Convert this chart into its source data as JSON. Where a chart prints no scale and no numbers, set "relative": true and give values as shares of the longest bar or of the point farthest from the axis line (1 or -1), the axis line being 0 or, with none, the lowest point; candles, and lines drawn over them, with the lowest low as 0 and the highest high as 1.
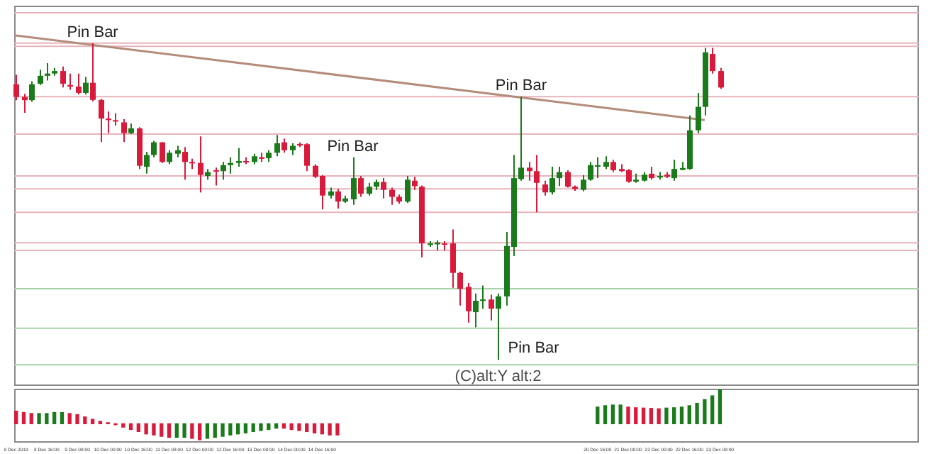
{
  "chart_data": [
    {
      "type": "candlestick",
      "relative": true,
      "tick_labels": false,
      "xlim": [
        "2019-12-07T23:00",
        "2019-12-27T16:00"
      ],
      "x": [
        "2019-12-08T00:00",
        "2019-12-08T04:00",
        "2019-12-08T08:00",
        "2019-12-08T12:00",
        "2019-12-08T16:00",
        "2019-12-08T20:00",
        "2019-12-09T00:00",
        "2019-12-09T04:00",
        "2019-12-09T08:00",
        "2019-12-09T12:00",
        "2019-12-09T16:00",
        "2019-12-09T20:00",
        "2019-12-10T00:00",
        "2019-12-10T04:00",
        "2019-12-10T08:00",
        "2019-12-10T12:00",
        "2019-12-10T16:00",
        "2019-12-10T20:00",
        "2019-12-11T00:00",
        "2019-12-11T04:00",
        "2019-12-11T08:00",
        "2019-12-11T12:00",
        "2019-12-11T16:00",
        "2019-12-11T20:00",
        "2019-12-12T00:00",
        "2019-12-12T04:00",
        "2019-12-12T08:00",
        "2019-12-12T12:00",
        "2019-12-12T16:00",
        "2019-12-12T20:00",
        "2019-12-13T00:00",
        "2019-12-13T04:00",
        "2019-12-13T08:00",
        "2019-12-13T12:00",
        "2019-12-13T16:00",
        "2019-12-13T20:00",
        "2019-12-14T00:00",
        "2019-12-14T04:00",
        "2019-12-14T08:00",
        "2019-12-14T12:00",
        "2019-12-14T16:00",
        "2019-12-14T20:00",
        "2019-12-15T00:00",
        "2019-12-15T04:00",
        "2019-12-15T08:00",
        "2019-12-15T12:00",
        "2019-12-15T16:00",
        "2019-12-15T20:00",
        "2019-12-16T00:00",
        "2019-12-16T04:00",
        "2019-12-16T08:00",
        "2019-12-16T12:00",
        "2019-12-16T16:00",
        "2019-12-16T20:00",
        "2019-12-17T00:00",
        "2019-12-17T04:00",
        "2019-12-17T08:00",
        "2019-12-17T12:00",
        "2019-12-17T16:00",
        "2019-12-17T20:00",
        "2019-12-18T00:00",
        "2019-12-18T04:00",
        "2019-12-18T08:00",
        "2019-12-18T12:00",
        "2019-12-18T16:00",
        "2019-12-18T20:00",
        "2019-12-19T00:00",
        "2019-12-19T04:00",
        "2019-12-19T08:00",
        "2019-12-19T12:00",
        "2019-12-19T16:00",
        "2019-12-19T20:00",
        "2019-12-20T00:00",
        "2019-12-20T04:00",
        "2019-12-20T08:00",
        "2019-12-20T12:00",
        "2019-12-20T16:00",
        "2019-12-20T20:00",
        "2019-12-21T00:00",
        "2019-12-21T04:00",
        "2019-12-21T08:00",
        "2019-12-21T12:00",
        "2019-12-21T16:00",
        "2019-12-21T20:00",
        "2019-12-22T00:00",
        "2019-12-22T04:00",
        "2019-12-22T08:00",
        "2019-12-22T12:00",
        "2019-12-22T16:00",
        "2019-12-22T20:00",
        "2019-12-23T00:00",
        "2019-12-23T04:00",
        "2019-12-23T08:00"
      ],
      "ohlc": [
        [
          0.87,
          0.9,
          0.82,
          0.83
        ],
        [
          0.83,
          0.84,
          0.78,
          0.82
        ],
        [
          0.82,
          0.88,
          0.815,
          0.87
        ],
        [
          0.872,
          0.916,
          0.868,
          0.897
        ],
        [
          0.897,
          0.937,
          0.882,
          0.904
        ],
        [
          0.904,
          0.922,
          0.897,
          0.912
        ],
        [
          0.912,
          0.926,
          0.86,
          0.872
        ],
        [
          0.868,
          0.904,
          0.853,
          0.863
        ],
        [
          0.863,
          0.904,
          0.838,
          0.843
        ],
        [
          0.843,
          0.893,
          0.838,
          0.875
        ],
        [
          0.875,
          1,
          0.816,
          0.821
        ],
        [
          0.821,
          0.824,
          0.688,
          0.762
        ],
        [
          0.762,
          0.784,
          0.716,
          0.757
        ],
        [
          0.757,
          0.779,
          0.74,
          0.753
        ],
        [
          0.75,
          0.76,
          0.688,
          0.716
        ],
        [
          0.716,
          0.746,
          0.713,
          0.731
        ],
        [
          0.731,
          0.735,
          0.603,
          0.613
        ],
        [
          0.61,
          0.657,
          0.588,
          0.647
        ],
        [
          0.647,
          0.691,
          0.64,
          0.687
        ],
        [
          0.687,
          0.688,
          0.622,
          0.625
        ],
        [
          0.625,
          0.662,
          0.618,
          0.654
        ],
        [
          0.651,
          0.676,
          0.64,
          0.662
        ],
        [
          0.657,
          0.672,
          0.569,
          0.625
        ],
        [
          0.625,
          0.635,
          0.603,
          0.621
        ],
        [
          0.622,
          0.706,
          0.529,
          0.584
        ],
        [
          0.581,
          0.603,
          0.569,
          0.593
        ],
        [
          0.599,
          0.607,
          0.551,
          0.596
        ],
        [
          0.596,
          0.625,
          0.569,
          0.615
        ],
        [
          0.615,
          0.64,
          0.588,
          0.622
        ],
        [
          0.622,
          0.669,
          0.61,
          0.628
        ],
        [
          0.628,
          0.64,
          0.618,
          0.625
        ],
        [
          0.625,
          0.651,
          0.618,
          0.643
        ],
        [
          0.64,
          0.654,
          0.625,
          0.635
        ],
        [
          0.637,
          0.662,
          0.625,
          0.654
        ],
        [
          0.654,
          0.71,
          0.643,
          0.684
        ],
        [
          0.687,
          0.699,
          0.654,
          0.662
        ],
        [
          0.662,
          0.684,
          0.647,
          0.676
        ],
        [
          0.682,
          0.687,
          0.672,
          0.677
        ],
        [
          0.681,
          0.684,
          0.596,
          0.613
        ],
        [
          0.613,
          0.618,
          0.574,
          0.578
        ],
        [
          0.581,
          0.584,
          0.475,
          0.519
        ],
        [
          0.519,
          0.544,
          0.51,
          0.532
        ],
        [
          0.532,
          0.54,
          0.478,
          0.5
        ],
        [
          0.5,
          0.519,
          0.496,
          0.51
        ],
        [
          0.507,
          0.64,
          0.49,
          0.574
        ],
        [
          0.574,
          0.581,
          0.515,
          0.525
        ],
        [
          0.525,
          0.559,
          0.519,
          0.547
        ],
        [
          0.547,
          0.569,
          0.537,
          0.562
        ],
        [
          0.562,
          0.574,
          0.51,
          0.537
        ],
        [
          0.537,
          0.544,
          0.49,
          0.515
        ],
        [
          0.515,
          0.522,
          0.493,
          0.5
        ],
        [
          0.5,
          0.581,
          0.496,
          0.569
        ],
        [
          0.566,
          0.578,
          0.537,
          0.549
        ],
        [
          0.547,
          0.551,
          0.324,
          0.368
        ],
        [
          0.363,
          0.375,
          0.357,
          0.368
        ],
        [
          0.365,
          0.378,
          0.346,
          0.371
        ],
        [
          0.368,
          0.375,
          0.346,
          0.365
        ],
        [
          0.368,
          0.412,
          0.228,
          0.275
        ],
        [
          0.275,
          0.279,
          0.172,
          0.225
        ],
        [
          0.231,
          0.243,
          0.118,
          0.154
        ],
        [
          0.151,
          0.21,
          0.103,
          0.187
        ],
        [
          0.188,
          0.235,
          0.162,
          0.191
        ],
        [
          0.191,
          0.206,
          0.125,
          0.162
        ],
        [
          0.162,
          0.21,
          0,
          0.201
        ],
        [
          0.201,
          0.404,
          0.172,
          0.36
        ],
        [
          0.357,
          0.647,
          0.328,
          0.574
        ],
        [
          0.571,
          0.831,
          0.566,
          0.607
        ],
        [
          0.607,
          0.625,
          0.566,
          0.596
        ],
        [
          0.596,
          0.647,
          0.466,
          0.559
        ],
        [
          0.554,
          0.566,
          0.519,
          0.529
        ],
        [
          0.529,
          0.61,
          0.522,
          0.574
        ],
        [
          0.574,
          0.61,
          0.549,
          0.593
        ],
        [
          0.593,
          0.599,
          0.544,
          0.547
        ],
        [
          0.547,
          0.551,
          0.534,
          0.54
        ],
        [
          0.537,
          0.584,
          0.532,
          0.569
        ],
        [
          0.569,
          0.625,
          0.566,
          0.615
        ],
        [
          0.61,
          0.64,
          0.574,
          0.615
        ],
        [
          0.61,
          0.643,
          0.603,
          0.625
        ],
        [
          0.625,
          0.632,
          0.593,
          0.599
        ],
        [
          0.603,
          0.618,
          0.593,
          0.596
        ],
        [
          0.599,
          0.603,
          0.559,
          0.563
        ],
        [
          0.563,
          0.588,
          0.559,
          0.569
        ],
        [
          0.566,
          0.593,
          0.563,
          0.585
        ],
        [
          0.588,
          0.61,
          0.569,
          0.574
        ],
        [
          0.576,
          0.593,
          0.569,
          0.581
        ],
        [
          0.585,
          0.593,
          0.574,
          0.578
        ],
        [
          0.574,
          0.632,
          0.566,
          0.603
        ],
        [
          0.6,
          0.625,
          0.599,
          0.606
        ],
        [
          0.603,
          0.772,
          0.6,
          0.725
        ],
        [
          0.725,
          0.843,
          0.716,
          0.799
        ],
        [
          0.799,
          0.985,
          0.772,
          0.971
        ],
        [
          0.966,
          0.985,
          0.904,
          0.912
        ],
        [
          0.912,
          0.922,
          0.856,
          0.86
        ]
      ],
      "colors": [
        "#d81b3c",
        "#d81b3c",
        "#1b7a1b",
        "#1b7a1b",
        "#1b7a1b",
        "#1b7a1b",
        "#d81b3c",
        "#d81b3c",
        "#d81b3c",
        "#1b7a1b",
        "#d81b3c",
        "#d81b3c",
        "#d81b3c",
        "#d81b3c",
        "#d81b3c",
        "#1b7a1b",
        "#d81b3c",
        "#1b7a1b",
        "#1b7a1b",
        "#d81b3c",
        "#1b7a1b",
        "#1b7a1b",
        "#d81b3c",
        "#d81b3c",
        "#d81b3c",
        "#1b7a1b",
        "#d81b3c",
        "#1b7a1b",
        "#1b7a1b",
        "#1b7a1b",
        "#d81b3c",
        "#1b7a1b",
        "#d81b3c",
        "#1b7a1b",
        "#1b7a1b",
        "#d81b3c",
        "#1b7a1b",
        "#d81b3c",
        "#d81b3c",
        "#d81b3c",
        "#d81b3c",
        "#1b7a1b",
        "#d81b3c",
        "#1b7a1b",
        "#1b7a1b",
        "#d81b3c",
        "#1b7a1b",
        "#1b7a1b",
        "#d81b3c",
        "#d81b3c",
        "#d81b3c",
        "#1b7a1b",
        "#d81b3c",
        "#d81b3c",
        "#1b7a1b",
        "#1b7a1b",
        "#d81b3c",
        "#d81b3c",
        "#d81b3c",
        "#d81b3c",
        "#1b7a1b",
        "#1b7a1b",
        "#d81b3c",
        "#1b7a1b",
        "#1b7a1b",
        "#1b7a1b",
        "#1b7a1b",
        "#d81b3c",
        "#d81b3c",
        "#d81b3c",
        "#1b7a1b",
        "#1b7a1b",
        "#d81b3c",
        "#d81b3c",
        "#1b7a1b",
        "#1b7a1b",
        "#1b7a1b",
        "#1b7a1b",
        "#d81b3c",
        "#d81b3c",
        "#d81b3c",
        "#1b7a1b",
        "#1b7a1b",
        "#d81b3c",
        "#1b7a1b",
        "#d81b3c",
        "#1b7a1b",
        "#1b7a1b",
        "#1b7a1b",
        "#1b7a1b",
        "#1b7a1b",
        "#d81b3c",
        "#d81b3c"
      ],
      "series": [
        {
          "type": "line",
          "color": "#b48c7c",
          "x": [
            "2019-12-07T23:00",
            "2019-12-23T00:00"
          ],
          "values": [
            1.025,
            0.757
          ]
        }
      ],
      "ref_lines": [
        {
          "axis": "y",
          "value": 1.096,
          "color": "#e6b3bb"
        },
        {
          "axis": "y",
          "value": 1.0,
          "color": "#e6b3bb"
        },
        {
          "axis": "y",
          "value": 0.99,
          "color": "#e6b3bb"
        },
        {
          "axis": "y",
          "value": 0.831,
          "color": "#e6b3bb"
        },
        {
          "axis": "y",
          "value": 0.713,
          "color": "#e6b3bb"
        },
        {
          "axis": "y",
          "value": 0.581,
          "color": "#e6b3bb"
        },
        {
          "axis": "y",
          "value": 0.54,
          "color": "#e6b3bb"
        },
        {
          "axis": "y",
          "value": 0.466,
          "color": "#e6b3bb"
        },
        {
          "axis": "y",
          "value": 0.37,
          "color": "#e6b3bb"
        },
        {
          "axis": "y",
          "value": 0.346,
          "color": "#e6b3bb"
        },
        {
          "axis": "y",
          "value": 0.225,
          "color": "#a9d1a9"
        },
        {
          "axis": "y",
          "value": 0.1,
          "color": "#a9d1a9"
        },
        {
          "axis": "y",
          "value": -0.015,
          "color": "#a9d1a9"
        }
      ],
      "annotations": [
        {
          "text": "Pin Bar",
          "x": "2019-12-09T16:00",
          "y": 1
        },
        {
          "text": "Pin Bar",
          "x": "2019-12-15T08:00",
          "y": 0.64
        },
        {
          "text": "Pin Bar",
          "x": "2019-12-19T00:00",
          "y": 0.831
        },
        {
          "text": "Pin Bar",
          "x": "2019-12-18T12:00",
          "y": 0
        },
        "(C)alt:Y alt:2"
      ]
    },
    {
      "type": "bar",
      "relative": true,
      "tick_labels": "x",
      "xlim": [
        "2019-12-07T23:00",
        "2019-12-27T16:00"
      ],
      "x": [
        "2019-12-08T00:00",
        "2019-12-08T04:00",
        "2019-12-08T08:00",
        "2019-12-08T12:00",
        "2019-12-08T16:00",
        "2019-12-08T20:00",
        "2019-12-09T00:00",
        "2019-12-09T04:00",
        "2019-12-09T08:00",
        "2019-12-09T12:00",
        "2019-12-09T16:00",
        "2019-12-09T20:00",
        "2019-12-10T00:00",
        "2019-12-10T04:00",
        "2019-12-10T08:00",
        "2019-12-10T12:00",
        "2019-12-10T16:00",
        "2019-12-10T20:00",
        "2019-12-11T00:00",
        "2019-12-11T04:00",
        "2019-12-11T08:00",
        "2019-12-11T12:00",
        "2019-12-11T16:00",
        "2019-12-11T20:00",
        "2019-12-12T00:00",
        "2019-12-12T04:00",
        "2019-12-12T08:00",
        "2019-12-12T12:00",
        "2019-12-12T16:00",
        "2019-12-12T20:00",
        "2019-12-13T00:00",
        "2019-12-13T04:00",
        "2019-12-13T08:00",
        "2019-12-13T12:00",
        "2019-12-13T16:00",
        "2019-12-13T20:00",
        "2019-12-14T00:00",
        "2019-12-14T04:00",
        "2019-12-14T08:00",
        "2019-12-14T12:00",
        "2019-12-14T16:00",
        "2019-12-14T20:00",
        "2019-12-15T00:00",
        "2019-12-15T04:00",
        "2019-12-15T08:00",
        "2019-12-15T12:00",
        "2019-12-15T16:00",
        "2019-12-15T20:00",
        "2019-12-16T00:00",
        "2019-12-16T04:00",
        "2019-12-16T08:00",
        "2019-12-16T12:00",
        "2019-12-16T16:00",
        "2019-12-16T20:00",
        "2019-12-17T00:00",
        "2019-12-17T04:00",
        "2019-12-17T08:00",
        "2019-12-17T12:00",
        "2019-12-17T16:00",
        "2019-12-17T20:00",
        "2019-12-18T00:00",
        "2019-12-18T04:00",
        "2019-12-18T08:00",
        "2019-12-18T12:00",
        "2019-12-18T16:00",
        "2019-12-18T20:00",
        "2019-12-19T00:00",
        "2019-12-19T04:00",
        "2019-12-19T08:00",
        "2019-12-19T12:00",
        "2019-12-19T16:00",
        "2019-12-19T20:00",
        "2019-12-20T00:00",
        "2019-12-20T04:00",
        "2019-12-20T08:00",
        "2019-12-20T12:00",
        "2019-12-20T16:00",
        "2019-12-20T20:00",
        "2019-12-21T00:00",
        "2019-12-21T04:00",
        "2019-12-21T08:00",
        "2019-12-21T12:00",
        "2019-12-21T16:00",
        "2019-12-21T20:00",
        "2019-12-22T00:00",
        "2019-12-22T04:00",
        "2019-12-22T08:00",
        "2019-12-22T12:00",
        "2019-12-22T16:00",
        "2019-12-22T20:00",
        "2019-12-23T00:00",
        "2019-12-23T04:00",
        "2019-12-23T08:00"
      ],
      "values": [
        0.37,
        0.33,
        0.3,
        0.3,
        0.3,
        0.33,
        0.33,
        0.3,
        0.27,
        0.2,
        0.13,
        0.07,
        0.03,
        -0.03,
        -0.1,
        -0.17,
        -0.23,
        -0.3,
        -0.33,
        -0.37,
        -0.4,
        -0.4,
        -0.4,
        -0.43,
        -0.47,
        -0.43,
        -0.4,
        -0.37,
        -0.33,
        -0.3,
        -0.27,
        -0.23,
        -0.2,
        -0.17,
        -0.13,
        -0.13,
        -0.17,
        -0.2,
        -0.23,
        -0.27,
        -0.3,
        -0.33,
        -0.33,
        null,
        null,
        null,
        null,
        null,
        null,
        null,
        null,
        null,
        null,
        null,
        null,
        null,
        null,
        null,
        null,
        null,
        null,
        null,
        null,
        null,
        null,
        null,
        null,
        null,
        null,
        null,
        null,
        null,
        null,
        null,
        null,
        null,
        0.49,
        0.53,
        0.55,
        0.55,
        0.49,
        0.47,
        0.46,
        0.45,
        0.44,
        0.46,
        0.47,
        0.49,
        0.53,
        0.6,
        0.71,
        0.82,
        1
      ],
      "colors": [
        "#d81b3c",
        "#d81b3c",
        "#d81b3c",
        "#1b7a1b",
        "#1b7a1b",
        "#1b7a1b",
        "#1b7a1b",
        "#d81b3c",
        "#d81b3c",
        "#d81b3c",
        "#d81b3c",
        "#d81b3c",
        "#d81b3c",
        "#d81b3c",
        "#d81b3c",
        "#d81b3c",
        "#d81b3c",
        "#d81b3c",
        "#d81b3c",
        "#d81b3c",
        "#d81b3c",
        "#1b7a1b",
        "#1b7a1b",
        "#d81b3c",
        "#d81b3c",
        "#1b7a1b",
        "#1b7a1b",
        "#1b7a1b",
        "#1b7a1b",
        "#1b7a1b",
        "#1b7a1b",
        "#1b7a1b",
        "#1b7a1b",
        "#1b7a1b",
        "#1b7a1b",
        "#d81b3c",
        "#d81b3c",
        "#d81b3c",
        "#d81b3c",
        "#d81b3c",
        "#d81b3c",
        "#d81b3c",
        "#d81b3c",
        "#1b7a1b",
        "#1b7a1b",
        "#1b7a1b",
        "#1b7a1b",
        "#1b7a1b",
        "#1b7a1b",
        "#1b7a1b",
        "#1b7a1b",
        "#1b7a1b",
        "#1b7a1b",
        "#1b7a1b",
        "#1b7a1b",
        "#1b7a1b",
        "#1b7a1b",
        "#1b7a1b",
        "#1b7a1b",
        "#1b7a1b",
        "#1b7a1b",
        "#1b7a1b",
        "#1b7a1b",
        "#1b7a1b",
        "#1b7a1b",
        "#1b7a1b",
        "#1b7a1b",
        "#1b7a1b",
        "#1b7a1b",
        "#1b7a1b",
        "#1b7a1b",
        "#1b7a1b",
        "#1b7a1b",
        "#1b7a1b",
        "#1b7a1b",
        "#1b7a1b",
        "#1b7a1b",
        "#1b7a1b",
        "#1b7a1b",
        "#1b7a1b",
        "#d81b3c",
        "#d81b3c",
        "#d81b3c",
        "#d81b3c",
        "#d81b3c",
        "#1b7a1b",
        "#1b7a1b",
        "#1b7a1b",
        "#1b7a1b",
        "#1b7a1b",
        "#1b7a1b",
        "#1b7a1b",
        "#1b7a1b"
      ],
      "xticks": [
        {
          "value": "2019-12-08T00:00",
          "label": "8 Dec 2019"
        },
        {
          "value": "2019-12-08T16:00",
          "label": "8 Dec 16:00"
        },
        {
          "value": "2019-12-09T08:00",
          "label": "9 Dec 08:00"
        },
        {
          "value": "2019-12-10T00:00",
          "label": "10 Dec 00:00"
        },
        {
          "value": "2019-12-10T16:00",
          "label": "10 Dec 16:00"
        },
        {
          "value": "2019-12-11T08:00",
          "label": "11 Dec 08:00"
        },
        {
          "value": "2019-12-12T00:00",
          "label": "12 Dec 00:00"
        },
        {
          "value": "2019-12-12T16:00",
          "label": "12 Dec 16:00"
        },
        {
          "value": "2019-12-13T08:00",
          "label": "13 Dec 08:00"
        },
        {
          "value": "2019-12-14T00:00",
          "label": "14 Dec 00:00"
        },
        {
          "value": "2019-12-14T16:00",
          "label": "14 Dec 16:00"
        },
        {
          "value": "2019-12-20T16:00",
          "label": "20 Dec 16:00"
        },
        {
          "value": "2019-12-21T08:00",
          "label": "21 Dec 08:00"
        },
        {
          "value": "2019-12-22T00:00",
          "label": "22 Dec 00:00"
        },
        {
          "value": "2019-12-22T16:00",
          "label": "22 Dec 16:00"
        },
        {
          "value": "2019-12-23T08:00",
          "label": "23 Dec 08:00"
        }
      ]
    }
  ]
}
